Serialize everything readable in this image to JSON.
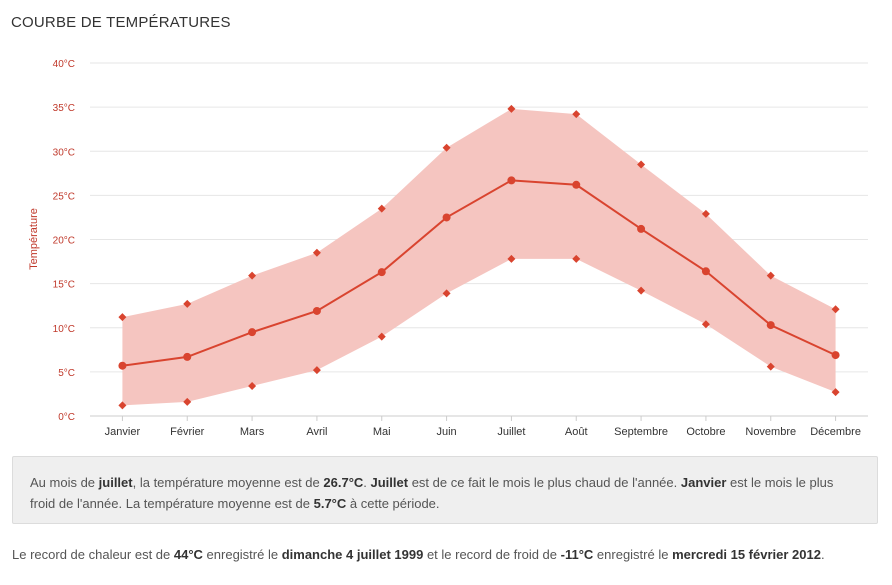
{
  "title": "COURBE DE TEMPÉRATURES",
  "chart_data": {
    "type": "line",
    "ylabel": "Température",
    "categories": [
      "Janvier",
      "Février",
      "Mars",
      "Avril",
      "Mai",
      "Juin",
      "Juillet",
      "Août",
      "Septembre",
      "Octobre",
      "Novembre",
      "Décembre"
    ],
    "series": [
      {
        "role": "min",
        "values": [
          1.2,
          1.6,
          3.4,
          5.2,
          9.0,
          13.9,
          17.8,
          17.8,
          14.2,
          10.4,
          5.6,
          2.7
        ]
      },
      {
        "role": "mean",
        "values": [
          5.7,
          6.7,
          9.5,
          11.9,
          16.3,
          22.5,
          26.7,
          26.2,
          21.2,
          16.4,
          10.3,
          6.9
        ]
      },
      {
        "role": "max",
        "values": [
          11.2,
          12.7,
          15.9,
          18.5,
          23.5,
          30.4,
          34.8,
          34.2,
          28.5,
          22.9,
          15.9,
          12.1
        ]
      }
    ],
    "ylim": [
      0,
      40
    ],
    "yticks": [
      "0°C",
      "5°C",
      "10°C",
      "15°C",
      "20°C",
      "25°C",
      "30°C",
      "35°C",
      "40°C"
    ],
    "grid": true,
    "colors": {
      "line": "#d9442f",
      "band": "#f5c5c0",
      "grid": "#e6e6e6",
      "tick": "#c0392b"
    }
  },
  "info": {
    "p1": "Au mois de ",
    "b1": "juillet",
    "p2": ", la température moyenne est de ",
    "b2": "26.7°C",
    "p3": ". ",
    "b3": "Juillet",
    "p4": " est de ce fait le mois le plus chaud de l'année. ",
    "b4": "Janvier",
    "p5": " est le mois le plus froid de l'année. La température moyenne est de ",
    "b5": "5.7°C",
    "p6": " à cette période."
  },
  "record": {
    "p1": "Le record de chaleur est de ",
    "b1": "44°C",
    "p2": " enregistré le ",
    "b2": "dimanche 4 juillet 1999",
    "p3": " et le record de froid de ",
    "b3": "-11°C",
    "p4": " enregistré le ",
    "b4": "mercredi 15 février 2012",
    "p5": "."
  }
}
